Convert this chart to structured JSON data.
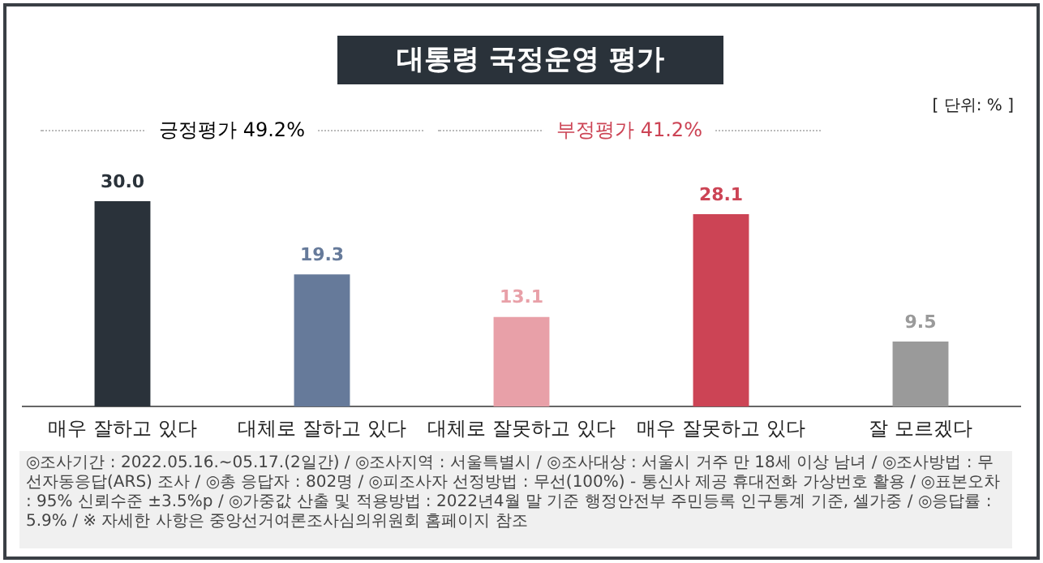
{
  "chart_data": {
    "type": "bar",
    "title": "대통령 국정운영 평가",
    "categories": [
      "매우 잘하고 있다",
      "대체로 잘하고 있다",
      "대체로 잘못하고 있다",
      "매우 잘못하고 있다",
      "잘 모르겠다"
    ],
    "values": [
      30.0,
      19.3,
      13.1,
      28.1,
      9.5
    ],
    "colors": [
      "#2a323a",
      "#667a9a",
      "#e8a0a8",
      "#cc4455",
      "#9a9a9a"
    ],
    "value_labels": [
      "30.0",
      "19.3",
      "13.1",
      "28.1",
      "9.5"
    ],
    "legend": false,
    "grid": false,
    "annotations": [
      "[ 단위: % ]",
      "긍정평가 49.2%",
      "부정평가 41.2%",
      "◎조사기간 : 2022.05.16.~05.17.(2일간) / ◎조사지역 : 서울특별시 / ◎조사대상 : 서울시 거주 만 18세 이상 남녀 / ◎조사방법 : 무선자동응답(ARS) 조사 / ◎총 응답자 : 802명 / ◎피조사자 선정방법 : 무선(100%) - 통신사 제공 휴대전화 가상번호 활용 / ◎표본오차 : 95% 신뢰수준 ±3.5%p / ◎가중값 산출 및 적용방법 : 2022년4월 말 기준 행정안전부 주민등록 인구통계 기준, 셀가중 / ◎응답률 : 5.9% / ※ 자세한 사항은 중앙선거여론조사심의위원회 홈페이지 참조"
    ]
  }
}
